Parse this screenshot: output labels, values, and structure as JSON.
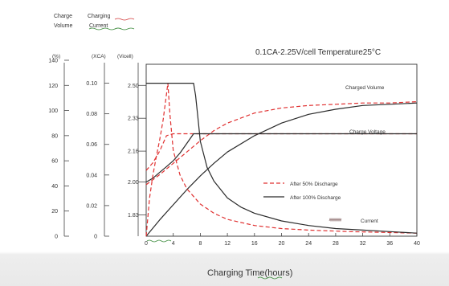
{
  "chart_data": {
    "type": "line",
    "title": "0.1CA-2.25V/cell  Temperature25°C",
    "xlabel": "Charging  Time(hours)",
    "x_ticks": [
      0,
      4,
      8,
      12,
      16,
      20,
      24,
      28,
      32,
      36,
      40
    ],
    "xlim": [
      0,
      40
    ],
    "axes": [
      {
        "unit": "(%)",
        "ticks": [
          "140",
          "120",
          "100",
          "80",
          "60",
          "40",
          "20",
          "0"
        ],
        "range": [
          0,
          140
        ]
      },
      {
        "unit": "(XCA)",
        "ticks": [
          "0.10",
          "0.08",
          "0.06",
          "0.04",
          "0.02",
          "0"
        ],
        "range": [
          0,
          0.115
        ]
      },
      {
        "unit": "(Vicell)",
        "ticks": [
          "2.50",
          "2.33",
          "2.16",
          "2.00",
          "1.83"
        ],
        "range": [
          1.72,
          2.63
        ]
      }
    ],
    "legend_top": {
      "items": [
        {
          "line1": "Charge",
          "line2": "Volume"
        },
        {
          "line1": "Charging",
          "line2": "Current"
        },
        {
          "line1": "",
          "line2": ""
        }
      ]
    },
    "legend": [
      {
        "label": "After  50% Discharge",
        "style": "dashed",
        "color": "#e03030"
      },
      {
        "label": "After  100%  Discharge",
        "style": "solid",
        "color": "#2a2a2a"
      }
    ],
    "annotations": {
      "charged_volume": "Charged Volume",
      "charge_voltage": "Charge Voltage",
      "current": "Current"
    },
    "series": [
      {
        "name": "After  50% Discharge",
        "quantity": "Charged Volume",
        "axis": 0,
        "x": [
          0,
          2,
          4,
          6,
          8,
          10,
          12,
          16,
          20,
          24,
          28,
          32,
          36,
          40
        ],
        "y": [
          41,
          49,
          58,
          67,
          76,
          84,
          90,
          98,
          102,
          104,
          105,
          106,
          106,
          107
        ]
      },
      {
        "name": "After  100%  Discharge",
        "quantity": "Charged Volume",
        "axis": 0,
        "x": [
          0,
          2,
          4,
          6,
          8,
          10,
          12,
          16,
          20,
          24,
          28,
          32,
          36,
          40
        ],
        "y": [
          0,
          13,
          25,
          37,
          48,
          58,
          67,
          80,
          90,
          97,
          101,
          104,
          105,
          106
        ]
      },
      {
        "name": "After  50% Discharge",
        "quantity": "Charge Voltage",
        "axis": 2,
        "x": [
          0,
          1,
          2,
          3,
          4,
          5,
          6,
          7,
          10,
          20,
          30,
          40
        ],
        "y": [
          2.06,
          2.1,
          2.16,
          2.24,
          2.25,
          2.25,
          2.25,
          2.25,
          2.25,
          2.25,
          2.25,
          2.25
        ]
      },
      {
        "name": "After  100%  Discharge",
        "quantity": "Charge Voltage",
        "axis": 2,
        "x": [
          0,
          1,
          2,
          3,
          4,
          5,
          6,
          7,
          10,
          20,
          30,
          40
        ],
        "y": [
          2.0,
          2.02,
          2.05,
          2.08,
          2.11,
          2.15,
          2.2,
          2.25,
          2.25,
          2.25,
          2.25,
          2.25
        ]
      },
      {
        "name": "After  50% Discharge",
        "quantity": "Charging Current",
        "axis": 1,
        "x": [
          0,
          0.5,
          1,
          1.5,
          2,
          2.5,
          3,
          3.2,
          3.5,
          4,
          5,
          6,
          8,
          10,
          12,
          16,
          20,
          24,
          30,
          40
        ],
        "y": [
          0.0,
          0.025,
          0.04,
          0.052,
          0.063,
          0.076,
          0.093,
          0.1,
          0.08,
          0.056,
          0.04,
          0.031,
          0.021,
          0.015,
          0.011,
          0.007,
          0.005,
          0.004,
          0.003,
          0.002
        ]
      },
      {
        "name": "After  100%  Discharge",
        "quantity": "Charging Current",
        "axis": 1,
        "x": [
          0,
          7,
          7.3,
          7.7,
          8,
          9,
          10,
          12,
          14,
          16,
          20,
          24,
          28,
          32,
          36,
          40
        ],
        "y": [
          0.1,
          0.1,
          0.092,
          0.075,
          0.062,
          0.045,
          0.036,
          0.025,
          0.019,
          0.015,
          0.01,
          0.007,
          0.005,
          0.004,
          0.003,
          0.002
        ]
      }
    ]
  }
}
